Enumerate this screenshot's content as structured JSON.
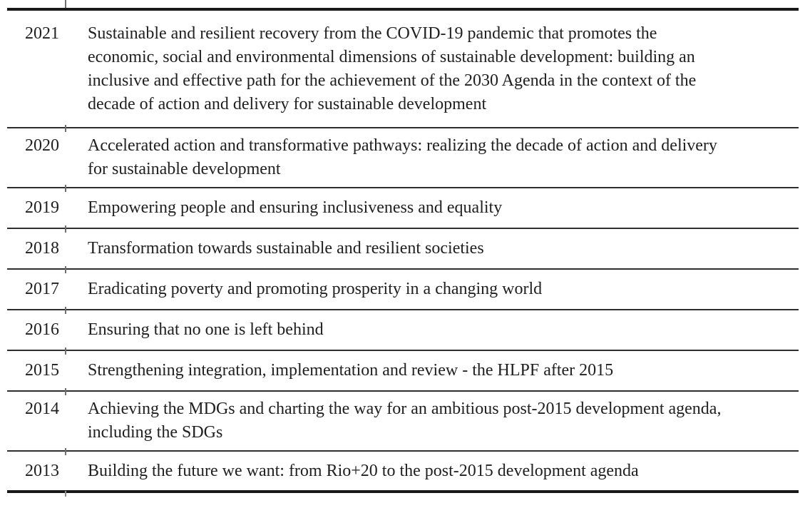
{
  "colors": {
    "background": "#ffffff",
    "text": "#202020",
    "rule_heavy": "#191919",
    "rule_light": "#2e2e2e",
    "tick_artifact": "#6f6f6f"
  },
  "table": {
    "rows": [
      {
        "year": "2021",
        "theme": "Sustainable and resilient recovery from the COVID-19 pandemic that promotes the\neconomic, social and environmental dimensions of sustainable development: building an\ninclusive and effective path for the achievement of the 2030 Agenda in the context of the\ndecade of action and delivery for sustainable development"
      },
      {
        "year": "2020",
        "theme": "Accelerated action and transformative pathways: realizing the decade of action and delivery\nfor sustainable development"
      },
      {
        "year": "2019",
        "theme": "Empowering people and ensuring inclusiveness and equality"
      },
      {
        "year": "2018",
        "theme": "Transformation towards sustainable and resilient societies"
      },
      {
        "year": "2017",
        "theme": "Eradicating poverty and promoting prosperity in a changing world"
      },
      {
        "year": "2016",
        "theme": "Ensuring that no one is left behind"
      },
      {
        "year": "2015",
        "theme": "Strengthening integration, implementation and review - the HLPF after 2015"
      },
      {
        "year": "2014",
        "theme": "Achieving the MDGs and charting the way for an ambitious post-2015 development agenda,\nincluding the SDGs"
      },
      {
        "year": "2013",
        "theme": "Building the future we want: from Rio+20 to the post-2015 development agenda"
      }
    ]
  }
}
